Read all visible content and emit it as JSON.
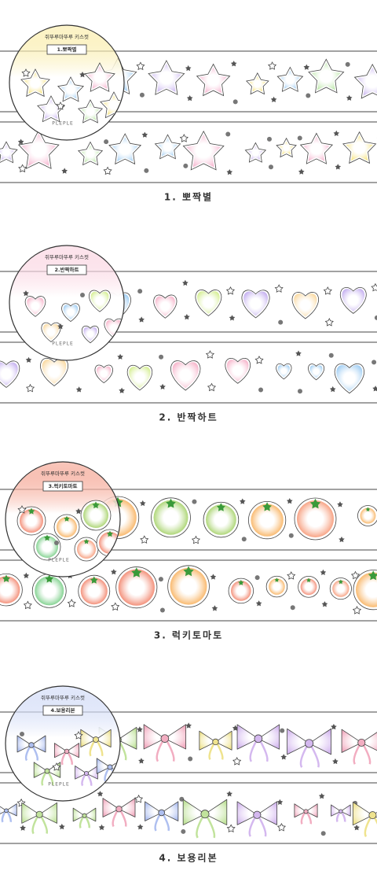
{
  "sections": [
    {
      "brand": "쥐뚜루마뚜루 키스컷",
      "label": "1.뽀짝별",
      "logo": "PLEPLE",
      "caption": "1. 뽀짝별"
    },
    {
      "brand": "쥐뚜루마뚜루 키스컷",
      "label": "2.반짝하트",
      "logo": "PLEPLE",
      "caption": "2. 반짝하트"
    },
    {
      "brand": "쥐뚜루마뚜루 키스컷",
      "label": "3.럭키토마토",
      "logo": "PLEPLE",
      "caption": "3. 럭키토마토"
    },
    {
      "brand": "쥐뚜루마뚜루 키스컷",
      "label": "4.보용리본",
      "logo": "PLEPLE",
      "caption": "4. 보용리본"
    }
  ]
}
